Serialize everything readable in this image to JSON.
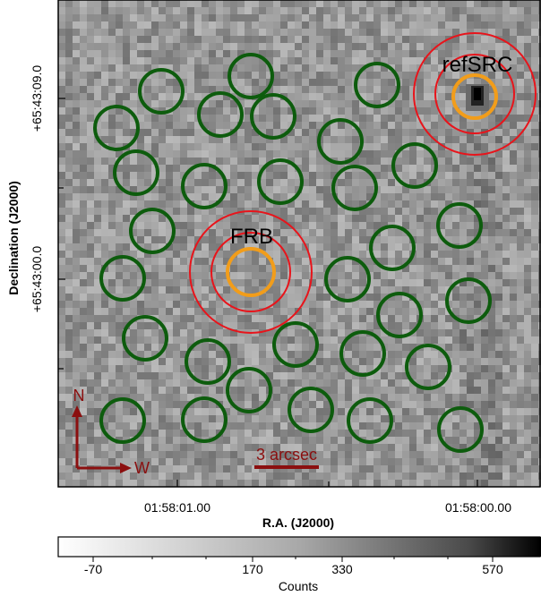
{
  "image": {
    "x_axis_label": "R.A. (J2000)",
    "y_axis_label": "Declination (J2000)",
    "x_ticks": [
      "01:58:01.00",
      "01:58:00.00"
    ],
    "y_ticks": [
      "+65:43:09.0",
      "+65:43:00.0"
    ],
    "source_labels": {
      "frb": "FRB",
      "ref": "refSRC"
    },
    "compass": {
      "north": "N",
      "west": "W"
    },
    "scale_bar_label": "3 arcsec",
    "background_circle_count": 30
  },
  "colorbar": {
    "label": "Counts",
    "ticks": [
      "-70",
      "170",
      "330",
      "570"
    ]
  },
  "colors": {
    "source_aperture": "#f29d1a",
    "annulus": "#e8141b",
    "background_aperture": "#0d5c0d",
    "annotation": "#8b0f0f"
  }
}
